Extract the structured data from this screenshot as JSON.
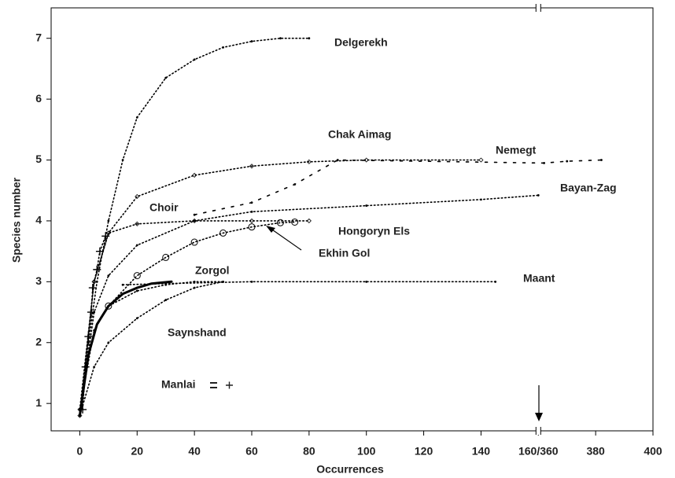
{
  "chart_data": {
    "type": "line",
    "xlabel": "Occurrences",
    "ylabel": "Species number",
    "xlim": [
      -10,
      400
    ],
    "xbreak": [
      160,
      360
    ],
    "xticks": [
      0,
      20,
      40,
      60,
      80,
      100,
      120,
      140,
      {
        "value": 160,
        "label": "160/360"
      },
      380,
      400
    ],
    "ylim": [
      0.55,
      7.5
    ],
    "yticks": [
      1,
      2,
      3,
      4,
      5,
      6,
      7
    ],
    "series": [
      {
        "name": "Delgerekh",
        "color": "#000000",
        "marker": "dot",
        "x": [
          0,
          3,
          6,
          10,
          15,
          20,
          30,
          40,
          50,
          60,
          70,
          80
        ],
        "values": [
          0.8,
          2.0,
          3.0,
          4.0,
          5.0,
          5.7,
          6.35,
          6.65,
          6.85,
          6.95,
          7.0,
          7.0
        ]
      },
      {
        "name": "Chak Aimag",
        "color": "#000000",
        "marker": "diamond",
        "x": [
          0,
          5,
          10,
          20,
          40,
          60,
          80,
          100,
          140
        ],
        "values": [
          0.8,
          3.0,
          3.8,
          4.4,
          4.75,
          4.9,
          4.97,
          5.0,
          5.0
        ]
      },
      {
        "name": "Nemegt",
        "color": "#000000",
        "marker": "dash",
        "x": [
          40,
          60,
          75,
          90,
          362,
          370,
          382
        ],
        "values": [
          4.1,
          4.3,
          4.6,
          5.0,
          4.95,
          4.98,
          5.0
        ]
      },
      {
        "name": "Bayan-Zag",
        "color": "#000000",
        "marker": "dot",
        "x": [
          0,
          5,
          10,
          20,
          40,
          60,
          100,
          140,
          160
        ],
        "values": [
          0.8,
          2.5,
          3.1,
          3.6,
          4.0,
          4.15,
          4.25,
          4.35,
          4.42
        ]
      },
      {
        "name": "Choir",
        "color": "#000000",
        "marker": "diamond",
        "x": [
          0,
          5,
          10,
          20,
          40,
          60,
          80
        ],
        "values": [
          0.9,
          3.0,
          3.8,
          3.95,
          4.0,
          4.0,
          4.0
        ]
      },
      {
        "name": "Hongoryn Els",
        "color": "#000000",
        "marker": "circle",
        "x": [
          10,
          20,
          30,
          40,
          50,
          60,
          70,
          75
        ],
        "values": [
          2.6,
          3.1,
          3.4,
          3.65,
          3.8,
          3.9,
          3.97,
          3.98
        ]
      },
      {
        "name": "Ekhin Gol",
        "color": "#000000",
        "marker": "line",
        "x": [
          0,
          3,
          6,
          10,
          15,
          20,
          25,
          32
        ],
        "values": [
          0.8,
          1.8,
          2.3,
          2.6,
          2.8,
          2.9,
          2.97,
          3.0
        ]
      },
      {
        "name": "Zorgol",
        "color": "#000000",
        "marker": "dot",
        "x": [
          0,
          5,
          10,
          20,
          30,
          40,
          50
        ],
        "values": [
          0.9,
          2.2,
          2.6,
          2.85,
          2.95,
          3.0,
          3.0
        ]
      },
      {
        "name": "Maant",
        "color": "#000000",
        "marker": "dot",
        "x": [
          15,
          30,
          60,
          100,
          145
        ],
        "values": [
          2.95,
          2.97,
          3.0,
          3.0,
          3.0
        ]
      },
      {
        "name": "Saynshand",
        "color": "#000000",
        "marker": "dot",
        "x": [
          0,
          5,
          10,
          20,
          30,
          40,
          50
        ],
        "values": [
          0.8,
          1.6,
          2.0,
          2.4,
          2.7,
          2.9,
          3.0
        ]
      },
      {
        "name": "Manlai",
        "color": "#000000",
        "marker": "cross",
        "x": [
          1,
          2,
          3,
          4,
          4.5,
          6,
          7,
          9
        ],
        "values": [
          0.9,
          1.6,
          2.1,
          2.5,
          2.9,
          3.2,
          3.5,
          3.75
        ]
      }
    ]
  }
}
